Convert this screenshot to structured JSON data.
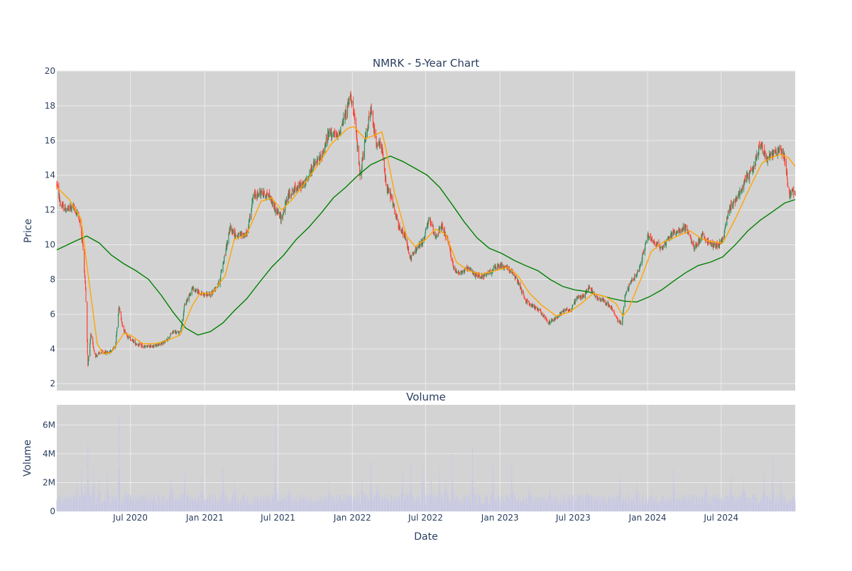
{
  "chart_data": [
    {
      "type": "candlestick",
      "title": "NMRK - 5-Year Chart",
      "ylabel": "Price",
      "ylim": [
        1.6,
        20
      ],
      "yticks": [
        2,
        4,
        6,
        8,
        10,
        12,
        14,
        16,
        18,
        20
      ],
      "x_range": [
        "2020-01-01",
        "2024-12-31"
      ],
      "xticks": [
        {
          "date": "2020-07-01",
          "label": "Jul 2020"
        },
        {
          "date": "2021-01-01",
          "label": "Jan 2021"
        },
        {
          "date": "2021-07-01",
          "label": "Jul 2021"
        },
        {
          "date": "2022-01-01",
          "label": "Jan 2022"
        },
        {
          "date": "2022-07-01",
          "label": "Jul 2022"
        },
        {
          "date": "2023-01-01",
          "label": "Jan 2023"
        },
        {
          "date": "2023-07-01",
          "label": "Jul 2023"
        },
        {
          "date": "2024-01-01",
          "label": "Jan 2024"
        },
        {
          "date": "2024-07-01",
          "label": "Jul 2024"
        }
      ],
      "colors": {
        "up": "#2e8b57",
        "down": "#ff4136",
        "ma_short": "#ffa500",
        "ma_long": "#008000",
        "plot_bg": "#d3d3d3",
        "grid": "#ebebeb"
      },
      "price_path": [
        [
          "2020-01-01",
          13.5
        ],
        [
          "2020-01-10",
          12.3
        ],
        [
          "2020-01-25",
          12.0
        ],
        [
          "2020-02-10",
          12.2
        ],
        [
          "2020-02-25",
          11.6
        ],
        [
          "2020-03-05",
          10.0
        ],
        [
          "2020-03-12",
          7.5
        ],
        [
          "2020-03-18",
          3.0
        ],
        [
          "2020-03-25",
          4.8
        ],
        [
          "2020-04-05",
          3.6
        ],
        [
          "2020-04-20",
          3.8
        ],
        [
          "2020-05-10",
          3.8
        ],
        [
          "2020-05-25",
          4.2
        ],
        [
          "2020-06-03",
          6.5
        ],
        [
          "2020-06-12",
          5.2
        ],
        [
          "2020-06-25",
          4.7
        ],
        [
          "2020-07-15",
          4.3
        ],
        [
          "2020-08-05",
          4.1
        ],
        [
          "2020-09-01",
          4.2
        ],
        [
          "2020-09-25",
          4.4
        ],
        [
          "2020-10-15",
          5.0
        ],
        [
          "2020-11-01",
          4.9
        ],
        [
          "2020-11-12",
          6.5
        ],
        [
          "2020-12-01",
          7.5
        ],
        [
          "2020-12-20",
          7.2
        ],
        [
          "2021-01-15",
          7.1
        ],
        [
          "2021-02-05",
          7.8
        ],
        [
          "2021-02-20",
          9.5
        ],
        [
          "2021-03-05",
          11.0
        ],
        [
          "2021-03-20",
          10.5
        ],
        [
          "2021-04-15",
          10.6
        ],
        [
          "2021-05-01",
          12.8
        ],
        [
          "2021-05-20",
          13.0
        ],
        [
          "2021-06-10",
          12.8
        ],
        [
          "2021-06-25",
          12.0
        ],
        [
          "2021-07-10",
          11.5
        ],
        [
          "2021-07-25",
          12.8
        ],
        [
          "2021-08-15",
          13.3
        ],
        [
          "2021-09-05",
          13.5
        ],
        [
          "2021-09-25",
          14.5
        ],
        [
          "2021-10-15",
          15.0
        ],
        [
          "2021-11-05",
          16.5
        ],
        [
          "2021-11-25",
          16.2
        ],
        [
          "2021-12-15",
          17.5
        ],
        [
          "2021-12-28",
          18.7
        ],
        [
          "2022-01-10",
          16.5
        ],
        [
          "2022-01-20",
          14.0
        ],
        [
          "2022-02-05",
          16.5
        ],
        [
          "2022-02-15",
          17.8
        ],
        [
          "2022-02-28",
          16.0
        ],
        [
          "2022-03-15",
          15.5
        ],
        [
          "2022-03-25",
          13.5
        ],
        [
          "2022-04-10",
          12.5
        ],
        [
          "2022-04-25",
          11.0
        ],
        [
          "2022-05-10",
          10.5
        ],
        [
          "2022-05-25",
          9.2
        ],
        [
          "2022-06-10",
          9.8
        ],
        [
          "2022-06-25",
          10.2
        ],
        [
          "2022-07-10",
          11.5
        ],
        [
          "2022-07-25",
          10.5
        ],
        [
          "2022-08-10",
          11.0
        ],
        [
          "2022-08-25",
          10.2
        ],
        [
          "2022-09-10",
          8.5
        ],
        [
          "2022-09-25",
          8.4
        ],
        [
          "2022-10-15",
          8.6
        ],
        [
          "2022-11-05",
          8.2
        ],
        [
          "2022-11-25",
          8.2
        ],
        [
          "2022-12-15",
          8.6
        ],
        [
          "2023-01-05",
          8.8
        ],
        [
          "2023-01-25",
          8.6
        ],
        [
          "2023-02-15",
          7.8
        ],
        [
          "2023-03-05",
          6.8
        ],
        [
          "2023-03-20",
          6.5
        ],
        [
          "2023-04-10",
          6.2
        ],
        [
          "2023-05-01",
          5.5
        ],
        [
          "2023-05-20",
          5.8
        ],
        [
          "2023-06-10",
          6.3
        ],
        [
          "2023-06-25",
          6.2
        ],
        [
          "2023-07-10",
          7.0
        ],
        [
          "2023-07-25",
          7.0
        ],
        [
          "2023-08-10",
          7.6
        ],
        [
          "2023-08-25",
          7.0
        ],
        [
          "2023-09-15",
          6.8
        ],
        [
          "2023-10-05",
          6.3
        ],
        [
          "2023-10-20",
          5.6
        ],
        [
          "2023-10-30",
          5.5
        ],
        [
          "2023-11-05",
          7.0
        ],
        [
          "2023-11-20",
          7.8
        ],
        [
          "2023-12-10",
          8.5
        ],
        [
          "2024-01-01",
          10.5
        ],
        [
          "2024-01-15",
          10.2
        ],
        [
          "2024-02-05",
          9.8
        ],
        [
          "2024-02-25",
          10.5
        ],
        [
          "2024-03-15",
          10.8
        ],
        [
          "2024-04-05",
          11.0
        ],
        [
          "2024-04-25",
          9.8
        ],
        [
          "2024-05-15",
          10.5
        ],
        [
          "2024-06-05",
          10.0
        ],
        [
          "2024-06-25",
          10.0
        ],
        [
          "2024-07-05",
          10.3
        ],
        [
          "2024-07-20",
          12.0
        ],
        [
          "2024-08-10",
          12.8
        ],
        [
          "2024-09-01",
          13.8
        ],
        [
          "2024-09-20",
          14.5
        ],
        [
          "2024-10-05",
          15.8
        ],
        [
          "2024-10-20",
          15.0
        ],
        [
          "2024-11-05",
          15.2
        ],
        [
          "2024-11-25",
          15.5
        ],
        [
          "2024-12-05",
          15.0
        ],
        [
          "2024-12-15",
          13.0
        ],
        [
          "2024-12-31",
          13.0
        ]
      ],
      "ma_short": [
        [
          "2020-01-01",
          13.3
        ],
        [
          "2020-02-01",
          12.6
        ],
        [
          "2020-03-01",
          11.5
        ],
        [
          "2020-03-20",
          8.0
        ],
        [
          "2020-04-10",
          4.3
        ],
        [
          "2020-04-25",
          3.7
        ],
        [
          "2020-05-15",
          3.8
        ],
        [
          "2020-06-15",
          4.9
        ],
        [
          "2020-07-01",
          4.8
        ],
        [
          "2020-08-01",
          4.3
        ],
        [
          "2020-09-01",
          4.3
        ],
        [
          "2020-10-01",
          4.5
        ],
        [
          "2020-11-01",
          4.8
        ],
        [
          "2020-12-01",
          6.5
        ],
        [
          "2020-12-20",
          7.2
        ],
        [
          "2021-01-20",
          7.2
        ],
        [
          "2021-02-20",
          8.2
        ],
        [
          "2021-03-15",
          10.3
        ],
        [
          "2021-04-15",
          10.6
        ],
        [
          "2021-05-20",
          12.5
        ],
        [
          "2021-06-15",
          12.7
        ],
        [
          "2021-07-10",
          12.0
        ],
        [
          "2021-08-05",
          12.6
        ],
        [
          "2021-09-01",
          13.4
        ],
        [
          "2021-10-05",
          14.5
        ],
        [
          "2021-11-10",
          15.8
        ],
        [
          "2021-12-20",
          16.7
        ],
        [
          "2022-01-05",
          16.8
        ],
        [
          "2022-02-01",
          16.1
        ],
        [
          "2022-02-25",
          16.3
        ],
        [
          "2022-03-15",
          16.5
        ],
        [
          "2022-03-25",
          15.5
        ],
        [
          "2022-04-15",
          13.0
        ],
        [
          "2022-05-15",
          10.5
        ],
        [
          "2022-06-05",
          9.9
        ],
        [
          "2022-07-01",
          10.3
        ],
        [
          "2022-07-25",
          10.9
        ],
        [
          "2022-08-20",
          10.6
        ],
        [
          "2022-09-15",
          9.0
        ],
        [
          "2022-10-15",
          8.5
        ],
        [
          "2022-11-15",
          8.3
        ],
        [
          "2022-12-20",
          8.5
        ],
        [
          "2023-01-20",
          8.7
        ],
        [
          "2023-02-15",
          8.2
        ],
        [
          "2023-03-15",
          7.2
        ],
        [
          "2023-04-15",
          6.5
        ],
        [
          "2023-05-20",
          5.9
        ],
        [
          "2023-06-20",
          6.1
        ],
        [
          "2023-07-20",
          6.6
        ],
        [
          "2023-08-20",
          7.2
        ],
        [
          "2023-09-20",
          7.0
        ],
        [
          "2023-10-15",
          6.6
        ],
        [
          "2023-11-01",
          5.9
        ],
        [
          "2023-11-15",
          6.3
        ],
        [
          "2023-12-15",
          8.0
        ],
        [
          "2024-01-10",
          9.6
        ],
        [
          "2024-02-05",
          10.1
        ],
        [
          "2024-03-15",
          10.5
        ],
        [
          "2024-04-15",
          10.8
        ],
        [
          "2024-05-10",
          10.4
        ],
        [
          "2024-06-01",
          10.2
        ],
        [
          "2024-07-05",
          10.1
        ],
        [
          "2024-08-05",
          11.5
        ],
        [
          "2024-09-10",
          13.3
        ],
        [
          "2024-10-10",
          14.7
        ],
        [
          "2024-11-01",
          15.0
        ],
        [
          "2024-11-25",
          15.2
        ],
        [
          "2024-12-15",
          15.0
        ],
        [
          "2024-12-31",
          14.5
        ]
      ],
      "ma_long": [
        [
          "2020-01-01",
          9.7
        ],
        [
          "2020-02-15",
          10.2
        ],
        [
          "2020-03-15",
          10.5
        ],
        [
          "2020-04-15",
          10.1
        ],
        [
          "2020-05-15",
          9.4
        ],
        [
          "2020-06-15",
          8.9
        ],
        [
          "2020-07-15",
          8.5
        ],
        [
          "2020-08-15",
          8.0
        ],
        [
          "2020-09-15",
          7.1
        ],
        [
          "2020-10-15",
          6.1
        ],
        [
          "2020-11-15",
          5.2
        ],
        [
          "2020-12-15",
          4.8
        ],
        [
          "2021-01-15",
          5.0
        ],
        [
          "2021-02-15",
          5.5
        ],
        [
          "2021-03-15",
          6.2
        ],
        [
          "2021-04-15",
          6.9
        ],
        [
          "2021-05-15",
          7.8
        ],
        [
          "2021-06-15",
          8.7
        ],
        [
          "2021-07-15",
          9.4
        ],
        [
          "2021-08-15",
          10.3
        ],
        [
          "2021-09-15",
          11.0
        ],
        [
          "2021-10-15",
          11.8
        ],
        [
          "2021-11-15",
          12.7
        ],
        [
          "2021-12-15",
          13.3
        ],
        [
          "2022-01-15",
          14.0
        ],
        [
          "2022-02-15",
          14.6
        ],
        [
          "2022-03-15",
          14.9
        ],
        [
          "2022-04-05",
          15.1
        ],
        [
          "2022-05-05",
          14.8
        ],
        [
          "2022-06-05",
          14.4
        ],
        [
          "2022-07-05",
          14.0
        ],
        [
          "2022-08-05",
          13.3
        ],
        [
          "2022-09-05",
          12.3
        ],
        [
          "2022-10-05",
          11.3
        ],
        [
          "2022-11-05",
          10.4
        ],
        [
          "2022-12-05",
          9.8
        ],
        [
          "2023-01-05",
          9.5
        ],
        [
          "2023-02-05",
          9.1
        ],
        [
          "2023-03-05",
          8.8
        ],
        [
          "2023-04-05",
          8.5
        ],
        [
          "2023-05-05",
          8.0
        ],
        [
          "2023-06-05",
          7.6
        ],
        [
          "2023-07-05",
          7.4
        ],
        [
          "2023-08-05",
          7.3
        ],
        [
          "2023-09-05",
          7.1
        ],
        [
          "2023-10-05",
          6.9
        ],
        [
          "2023-11-05",
          6.75
        ],
        [
          "2023-12-05",
          6.7
        ],
        [
          "2024-01-05",
          7.0
        ],
        [
          "2024-02-05",
          7.4
        ],
        [
          "2024-03-05",
          7.9
        ],
        [
          "2024-04-05",
          8.4
        ],
        [
          "2024-05-05",
          8.8
        ],
        [
          "2024-06-05",
          9.0
        ],
        [
          "2024-07-05",
          9.3
        ],
        [
          "2024-08-05",
          10.0
        ],
        [
          "2024-09-05",
          10.8
        ],
        [
          "2024-10-05",
          11.4
        ],
        [
          "2024-11-05",
          11.9
        ],
        [
          "2024-12-05",
          12.4
        ],
        [
          "2024-12-31",
          12.6
        ]
      ]
    },
    {
      "type": "bar",
      "title": "Volume",
      "xlabel": "Date",
      "ylabel": "Volume",
      "ylim": [
        0,
        7400000
      ],
      "yticks": [
        {
          "value": 0,
          "label": "0"
        },
        {
          "value": 2000000,
          "label": "2M"
        },
        {
          "value": 4000000,
          "label": "4M"
        },
        {
          "value": 6000000,
          "label": "6M"
        }
      ],
      "bar_color": "#c8c8e6",
      "baseline_volume": 1000000,
      "volume_spikes": [
        [
          "2020-02-20",
          2000000
        ],
        [
          "2020-03-02",
          3000000
        ],
        [
          "2020-03-12",
          1900000
        ],
        [
          "2020-03-18",
          4600000
        ],
        [
          "2020-04-01",
          3200000
        ],
        [
          "2020-04-15",
          2300000
        ],
        [
          "2020-05-05",
          2600000
        ],
        [
          "2020-06-03",
          6700000
        ],
        [
          "2020-06-20",
          2100000
        ],
        [
          "2020-10-10",
          4700000
        ],
        [
          "2020-11-12",
          2700000
        ],
        [
          "2020-12-25",
          2500000
        ],
        [
          "2021-02-15",
          3000000
        ],
        [
          "2021-03-15",
          2100000
        ],
        [
          "2021-06-25",
          6400000
        ],
        [
          "2021-07-30",
          1800000
        ],
        [
          "2021-11-05",
          2100000
        ],
        [
          "2022-01-25",
          2200000
        ],
        [
          "2022-02-15",
          3500000
        ],
        [
          "2022-03-05",
          3500000
        ],
        [
          "2022-05-05",
          2700000
        ],
        [
          "2022-05-25",
          3300000
        ],
        [
          "2022-06-25",
          7000000
        ],
        [
          "2022-07-15",
          2200000
        ],
        [
          "2022-08-05",
          3100000
        ],
        [
          "2022-08-20",
          4200000
        ],
        [
          "2022-09-05",
          4000000
        ],
        [
          "2022-10-25",
          4500000
        ],
        [
          "2022-12-15",
          3200000
        ],
        [
          "2023-01-30",
          3300000
        ],
        [
          "2023-03-15",
          1800000
        ],
        [
          "2023-05-05",
          1800000
        ],
        [
          "2023-08-05",
          2000000
        ],
        [
          "2023-10-25",
          2500000
        ],
        [
          "2023-12-05",
          2000000
        ],
        [
          "2024-03-05",
          3000000
        ],
        [
          "2024-05-25",
          3800000
        ],
        [
          "2024-07-25",
          2400000
        ],
        [
          "2024-08-25",
          3900000
        ],
        [
          "2024-10-15",
          2600000
        ],
        [
          "2024-11-05",
          3800000
        ],
        [
          "2024-11-25",
          2100000
        ]
      ]
    }
  ]
}
